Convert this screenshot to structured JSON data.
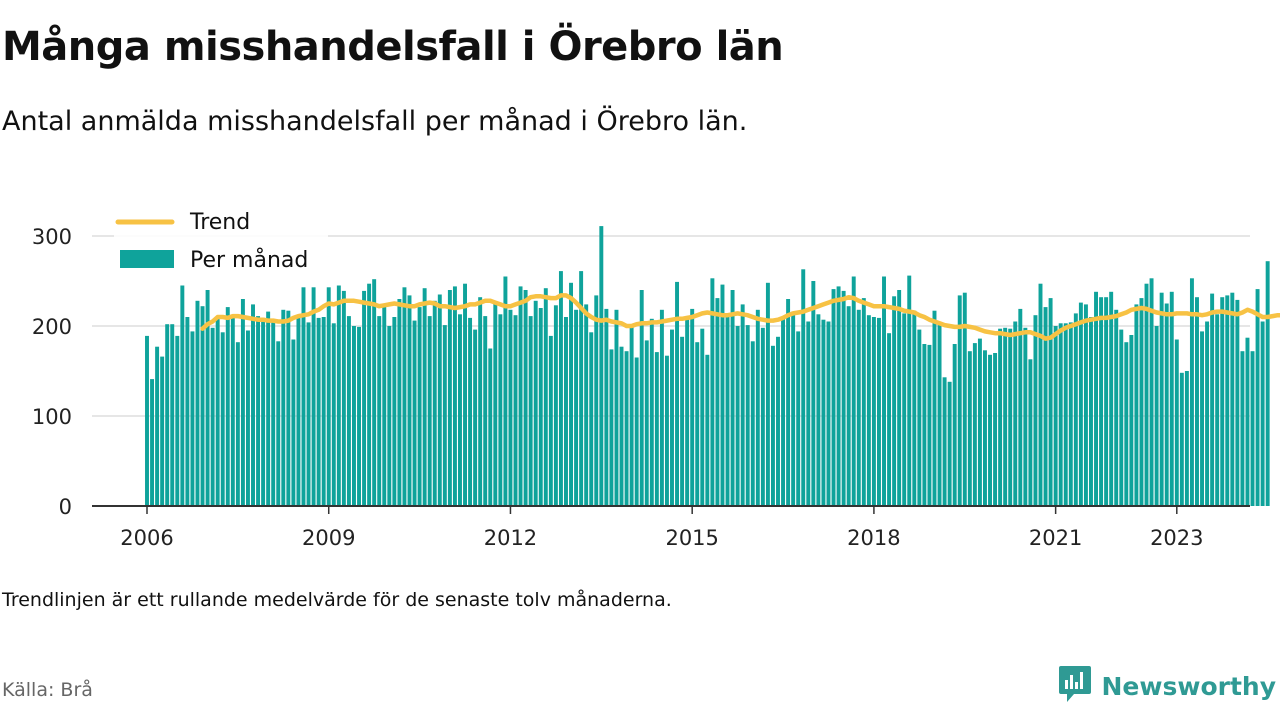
{
  "title": "Många misshandelsfall i Örebro län",
  "subtitle": "Antal anmälda misshandelsfall per månad i Örebro län.",
  "note": "Trendlinjen är ett rullande medelvärde för de senaste tolv månaderna.",
  "source": "Källa: Brå",
  "brand": {
    "name": "Newsworthy",
    "icon": "newsworthy-logo-icon"
  },
  "colors": {
    "bars": "#0fa39b",
    "trend": "#f7c244",
    "grid": "#dddddd",
    "axis": "#333333"
  },
  "chart_data": {
    "type": "bar",
    "x_start": "2006-01",
    "frequency": "monthly",
    "ylim": [
      0,
      300
    ],
    "yticks": [
      0,
      100,
      200,
      300
    ],
    "xticks": [
      "2006",
      "2009",
      "2012",
      "2015",
      "2018",
      "2021",
      "2023"
    ],
    "grid": true,
    "legend": {
      "position": "top-left",
      "entries": [
        "Trend",
        "Per månad"
      ]
    },
    "series": [
      {
        "name": "Per månad",
        "kind": "bar",
        "values": [
          189,
          141,
          177,
          166,
          202,
          202,
          189,
          245,
          210,
          194,
          228,
          222,
          240,
          198,
          209,
          193,
          221,
          211,
          182,
          230,
          195,
          224,
          211,
          209,
          216,
          206,
          183,
          218,
          217,
          185,
          210,
          243,
          204,
          243,
          209,
          210,
          243,
          203,
          245,
          239,
          211,
          200,
          199,
          239,
          247,
          252,
          211,
          222,
          200,
          210,
          230,
          243,
          234,
          206,
          221,
          242,
          211,
          228,
          235,
          201,
          240,
          244,
          213,
          247,
          209,
          196,
          232,
          211,
          175,
          226,
          213,
          255,
          218,
          212,
          244,
          240,
          211,
          228,
          220,
          242,
          189,
          223,
          261,
          210,
          248,
          218,
          261,
          224,
          193,
          234,
          311,
          219,
          174,
          218,
          177,
          172,
          202,
          165,
          240,
          184,
          208,
          171,
          218,
          167,
          196,
          249,
          188,
          210,
          219,
          182,
          197,
          168,
          253,
          231,
          246,
          212,
          240,
          200,
          224,
          201,
          183,
          218,
          198,
          248,
          178,
          188,
          208,
          230,
          216,
          194,
          263,
          205,
          250,
          213,
          207,
          205,
          241,
          244,
          239,
          222,
          255,
          218,
          231,
          212,
          210,
          209,
          255,
          192,
          233,
          240,
          214,
          256,
          217,
          196,
          180,
          179,
          217,
          201,
          143,
          138,
          180,
          234,
          237,
          172,
          181,
          186,
          173,
          168,
          170,
          197,
          198,
          197,
          205,
          219,
          198,
          163,
          212,
          247,
          221,
          231,
          200,
          203,
          203,
          204,
          214,
          226,
          224,
          210,
          238,
          232,
          232,
          238,
          218,
          196,
          182,
          190,
          224,
          231,
          247,
          253,
          200,
          237,
          225,
          238,
          185,
          148,
          150,
          253,
          232,
          194,
          205,
          236,
          213,
          232,
          234,
          237,
          229,
          172,
          187,
          172,
          241,
          205,
          272
        ]
      },
      {
        "name": "Trend",
        "kind": "line",
        "start_index": 11,
        "values": [
          197,
          202,
          205,
          210,
          210,
          209,
          211,
          211,
          210,
          209,
          208,
          207,
          207,
          206,
          206,
          205,
          205,
          206,
          209,
          211,
          212,
          213,
          216,
          218,
          222,
          225,
          224,
          226,
          228,
          228,
          228,
          227,
          226,
          225,
          224,
          222,
          223,
          224,
          225,
          224,
          223,
          222,
          222,
          224,
          225,
          226,
          225,
          222,
          222,
          221,
          220,
          221,
          222,
          224,
          224,
          226,
          228,
          228,
          226,
          224,
          222,
          222,
          224,
          226,
          228,
          232,
          233,
          233,
          232,
          231,
          231,
          234,
          234,
          231,
          226,
          220,
          214,
          210,
          207,
          206,
          207,
          205,
          204,
          203,
          200,
          200,
          202,
          203,
          203,
          204,
          204,
          205,
          206,
          207,
          208,
          208,
          209,
          210,
          212,
          214,
          215,
          214,
          213,
          212,
          212,
          213,
          214,
          213,
          212,
          210,
          208,
          207,
          206,
          206,
          207,
          209,
          212,
          214,
          215,
          216,
          218,
          220,
          222,
          224,
          226,
          228,
          229,
          230,
          232,
          231,
          228,
          226,
          224,
          222,
          222,
          222,
          221,
          220,
          219,
          217,
          216,
          215,
          212,
          210,
          207,
          205,
          203,
          201,
          200,
          199,
          199,
          200,
          199,
          198,
          196,
          194,
          193,
          192,
          192,
          191,
          190,
          191,
          192,
          193,
          193,
          191,
          189,
          186,
          187,
          191,
          195,
          198,
          200,
          202,
          204,
          206,
          207,
          208,
          209,
          209,
          210,
          211,
          213,
          215,
          218,
          219,
          220,
          219,
          217,
          215,
          214,
          213,
          213,
          214,
          214,
          214,
          213,
          213,
          212,
          213,
          215,
          216,
          216,
          215,
          214,
          213,
          215,
          218,
          216,
          213,
          210,
          210,
          211,
          212,
          212,
          213
        ]
      }
    ]
  }
}
